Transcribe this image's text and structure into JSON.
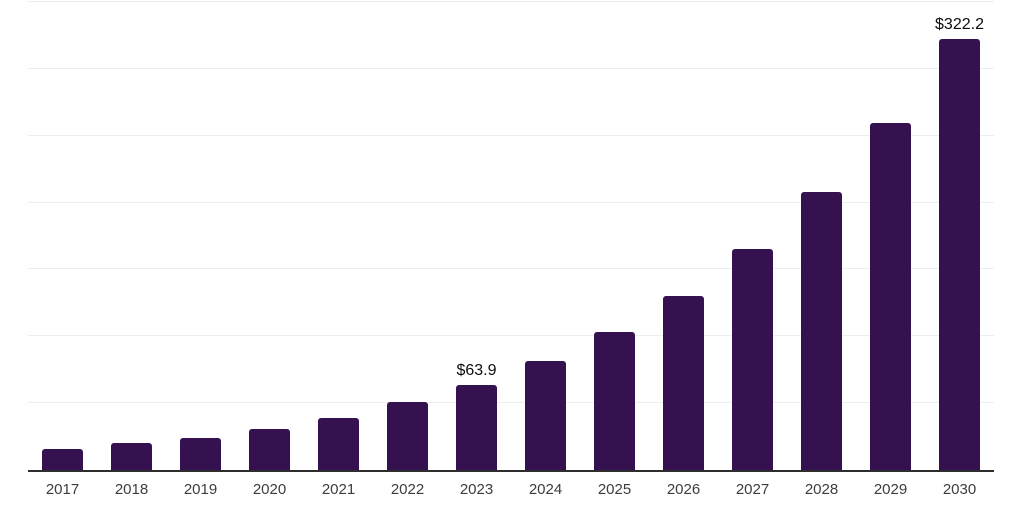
{
  "chart_data": {
    "type": "bar",
    "title": "",
    "xlabel": "",
    "ylabel": "",
    "categories": [
      "2017",
      "2018",
      "2019",
      "2020",
      "2021",
      "2022",
      "2023",
      "2024",
      "2025",
      "2026",
      "2027",
      "2028",
      "2029",
      "2030"
    ],
    "values": [
      15.8,
      20.3,
      24.1,
      30.8,
      39.0,
      51.0,
      63.9,
      81.3,
      103.5,
      130.5,
      165.0,
      207.8,
      259.4,
      322.2
    ],
    "data_labels": {
      "2023": "$63.9",
      "2030": "$322.2"
    },
    "ylim": [
      0,
      350
    ],
    "gridline_step": 50,
    "grid": true,
    "legend": false,
    "colors": {
      "bar": "#351150",
      "gridline": "#ededed",
      "axis_line": "#2e2e2e",
      "value_label_text": "#0d0d0d",
      "tick_label_text": "#3d3d3d",
      "background": "#ffffff"
    }
  }
}
